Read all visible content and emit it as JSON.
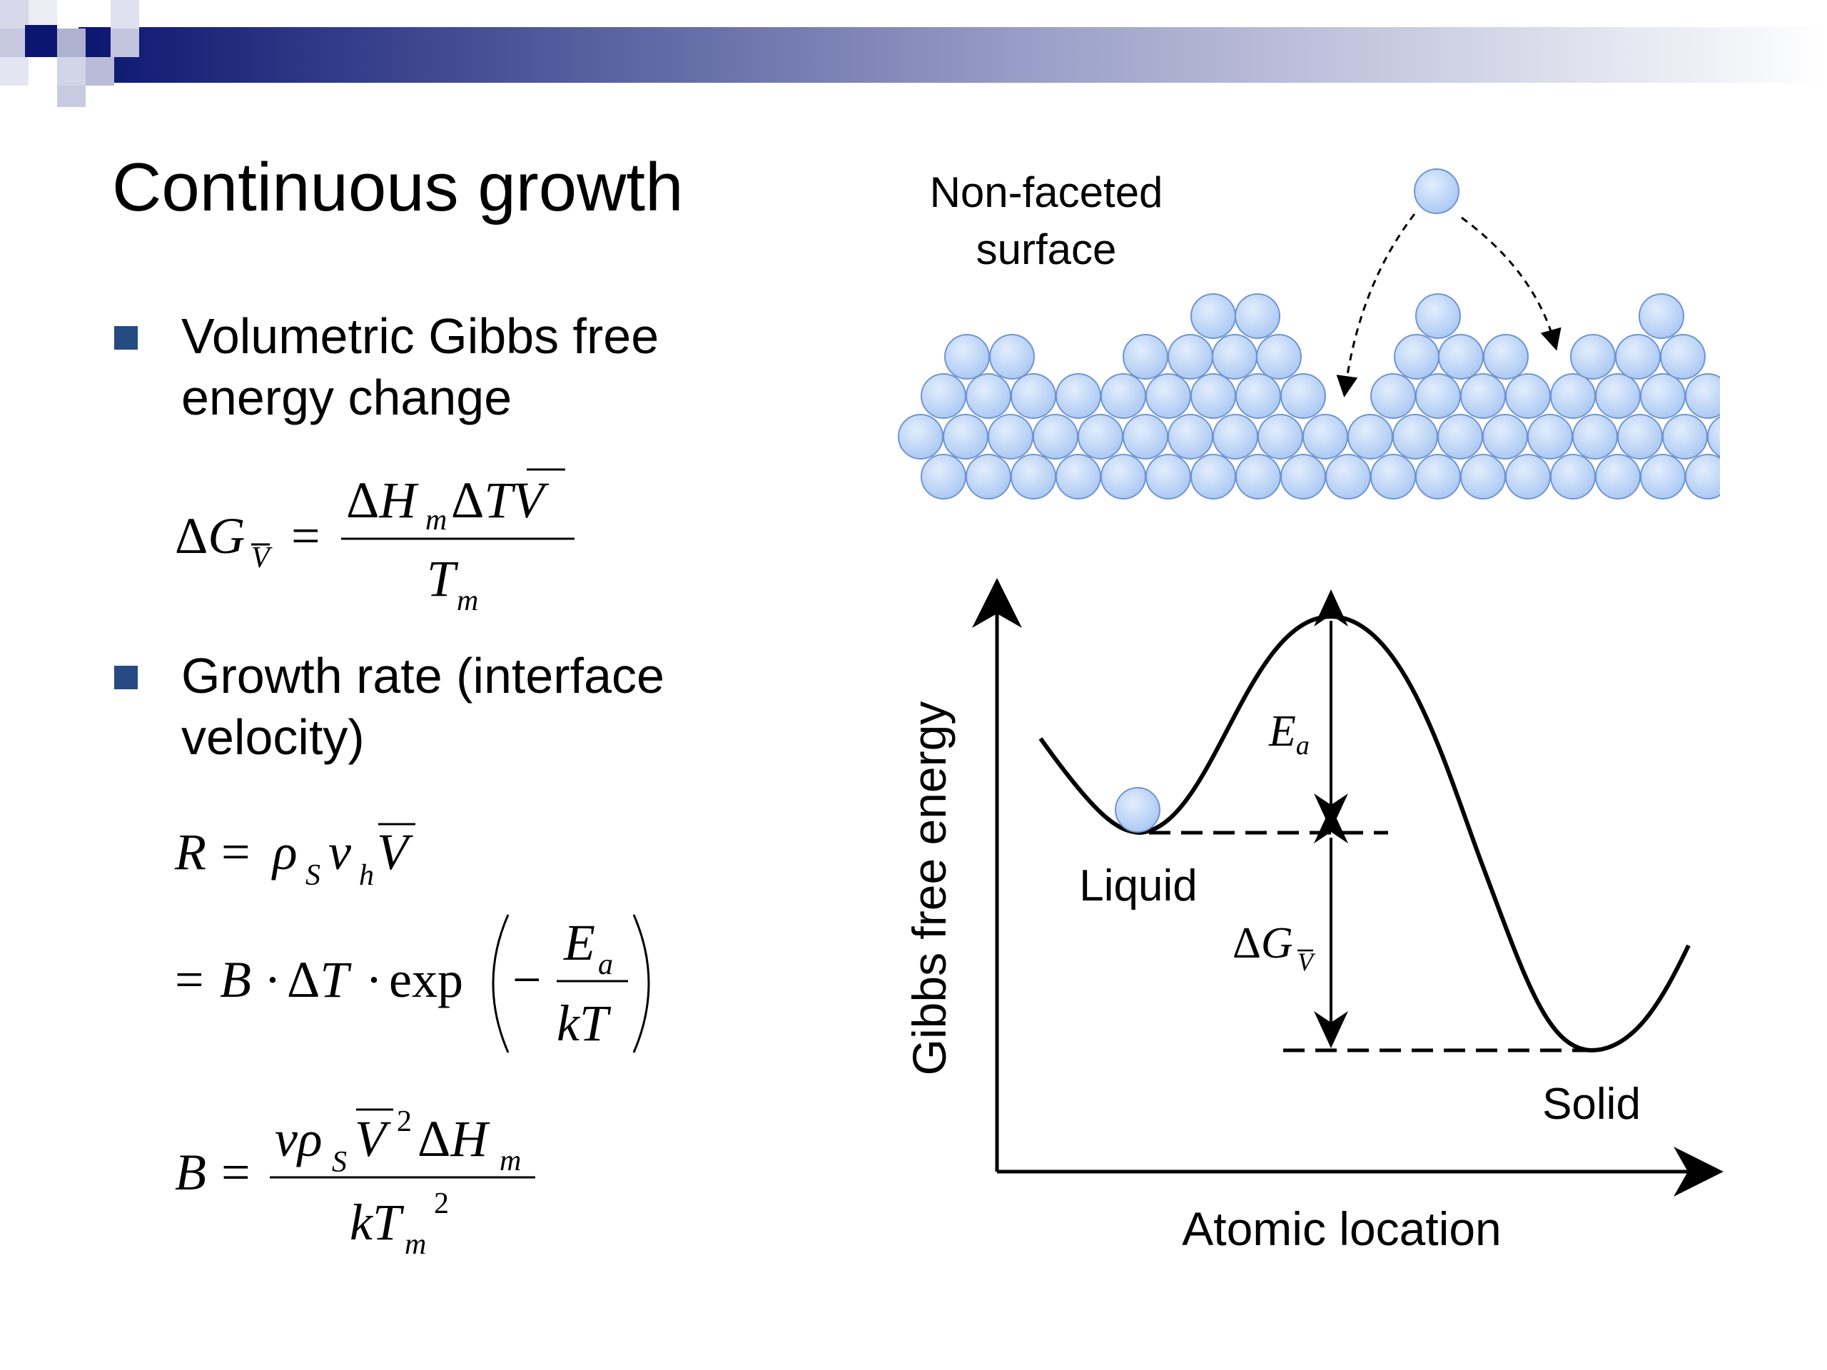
{
  "slide": {
    "title": "Continuous growth",
    "bullets": [
      {
        "text": "Volumetric Gibbs free energy change"
      },
      {
        "text": "Growth rate (interface velocity)"
      }
    ]
  },
  "equations": {
    "eq1": "ΔG_V̄ = ΔH_m ΔT V̄ / T_m",
    "eq2": "R = ρ_S ν_h V̄",
    "eq3": "= B · ΔT · exp(− E_a / kT)",
    "eq4": "B = ν ρ_S V̄² ΔH_m / k T_m²"
  },
  "surface_diagram": {
    "label_line1": "Non-faceted",
    "label_line2": "surface",
    "atom_color": "#a9c7f3",
    "atom_edge": "#6f95d2"
  },
  "energy_diagram": {
    "ylabel": "Gibbs free energy",
    "xlabel": "Atomic location",
    "liquid_label": "Liquid",
    "solid_label": "Solid",
    "activation_label": "E_a",
    "deltaG_label": "ΔG_V̄"
  },
  "colors": {
    "bullet": "#264a82",
    "header_dark": "#0b1670"
  }
}
